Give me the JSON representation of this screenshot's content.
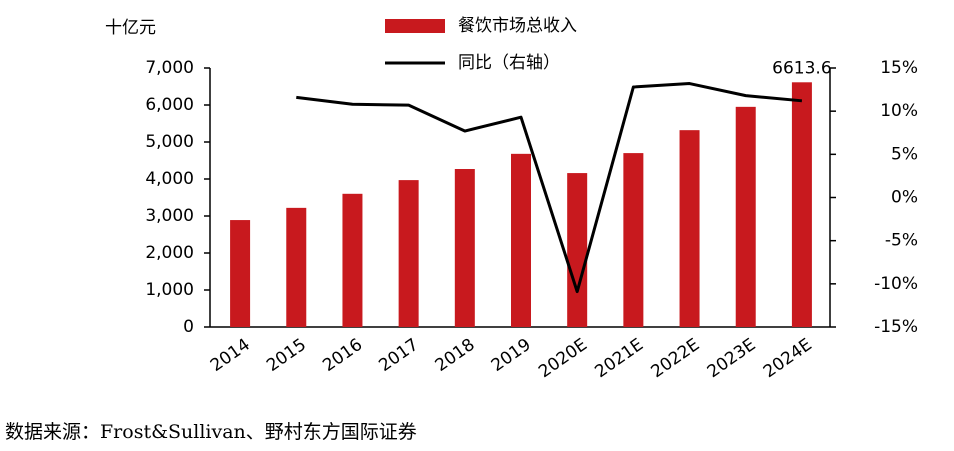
{
  "chart_data": {
    "type": "bar",
    "y_unit_label": "十亿元",
    "categories": [
      "2014",
      "2015",
      "2016",
      "2017",
      "2018",
      "2019",
      "2020E",
      "2021E",
      "2022E",
      "2023E",
      "2024E"
    ],
    "series": [
      {
        "name": "餐饮市场总收入",
        "type": "bar",
        "color": "#c8191e",
        "values": [
          2890,
          3220,
          3600,
          3970,
          4270,
          4680,
          4160,
          4700,
          5320,
          5950,
          6613.6
        ]
      },
      {
        "name": "同比（右轴）",
        "type": "line",
        "axis": "y2",
        "color": "#000000",
        "values": [
          null,
          11.6,
          10.8,
          10.7,
          7.7,
          9.3,
          -10.9,
          12.8,
          13.2,
          11.8,
          11.2
        ]
      }
    ],
    "value_label_index": 10,
    "ylim": [
      0,
      7000
    ],
    "yticks": [
      0,
      {
        "value": 1000,
        "label": "1,000"
      },
      {
        "value": 2000,
        "label": "2,000"
      },
      {
        "value": 3000,
        "label": "3,000"
      },
      {
        "value": 4000,
        "label": "4,000"
      },
      {
        "value": 5000,
        "label": "5,000"
      },
      {
        "value": 6000,
        "label": "6,000"
      },
      {
        "value": 7000,
        "label": "7,000"
      }
    ],
    "y2lim": [
      -15,
      15
    ],
    "y2ticks": [
      {
        "value": -15,
        "label": "-15%"
      },
      {
        "value": -10,
        "label": "-10%"
      },
      {
        "value": -5,
        "label": "-5%"
      },
      {
        "value": 0,
        "label": "0%"
      },
      {
        "value": 5,
        "label": "5%"
      },
      {
        "value": 10,
        "label": "10%"
      },
      {
        "value": 15,
        "label": "15%"
      }
    ],
    "source": "数据来源：Frost&Sullivan、野村东方国际证券"
  }
}
